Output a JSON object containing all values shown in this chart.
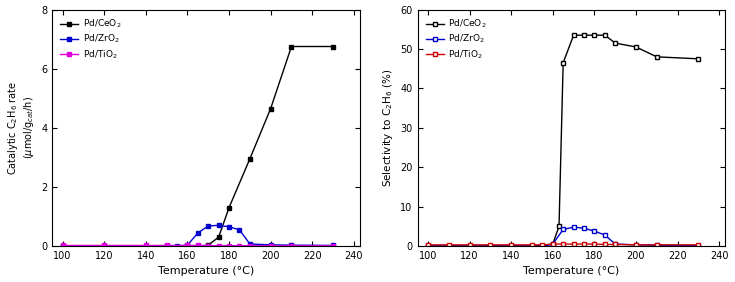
{
  "xlabel": "Temperature (°C)",
  "left_ylabel_line1": "Catalytic C",
  "right_ylabel": "Selectivity to C₂H₆ (%)",
  "temp_ceo2_left": [
    100,
    150,
    160,
    165,
    170,
    175,
    180,
    190,
    200,
    210,
    230
  ],
  "rate_ceo2": [
    0.0,
    0.0,
    0.0,
    0.0,
    0.03,
    0.3,
    1.3,
    2.95,
    4.65,
    6.75,
    6.75
  ],
  "temp_zro2_left": [
    100,
    150,
    155,
    160,
    165,
    170,
    175,
    180,
    185,
    190,
    200,
    210,
    230
  ],
  "rate_zro2": [
    0.0,
    0.0,
    0.0,
    0.03,
    0.44,
    0.68,
    0.7,
    0.65,
    0.55,
    0.07,
    0.04,
    0.03,
    0.02
  ],
  "temp_tio2_left": [
    100,
    120,
    140,
    150,
    160,
    165,
    170,
    175,
    180,
    185,
    190,
    200,
    210,
    230
  ],
  "rate_tio2": [
    0.02,
    0.02,
    0.02,
    0.02,
    0.02,
    0.02,
    0.01,
    0.01,
    0.01,
    0.01,
    0.01,
    0.01,
    0.01,
    0.01
  ],
  "temp_ceo2_right": [
    100,
    110,
    120,
    130,
    140,
    150,
    155,
    160,
    163,
    165,
    170,
    175,
    180,
    185,
    190,
    200,
    210,
    230
  ],
  "sel_ceo2": [
    0.0,
    0.0,
    0.0,
    0.0,
    0.0,
    0.0,
    0.0,
    0.5,
    5.0,
    46.5,
    53.5,
    53.5,
    53.5,
    53.5,
    51.5,
    50.5,
    48.0,
    47.5
  ],
  "temp_zro2_right": [
    100,
    120,
    140,
    150,
    155,
    160,
    165,
    170,
    175,
    180,
    185,
    190,
    200,
    210,
    230
  ],
  "sel_zro2": [
    0.0,
    0.0,
    0.0,
    0.0,
    0.0,
    0.5,
    4.2,
    4.8,
    4.5,
    3.8,
    2.8,
    0.5,
    0.3,
    0.2,
    0.1
  ],
  "temp_tio2_right": [
    100,
    110,
    120,
    130,
    140,
    150,
    155,
    160,
    165,
    170,
    175,
    180,
    185,
    190,
    200,
    210,
    230
  ],
  "sel_tio2": [
    0.3,
    0.3,
    0.3,
    0.3,
    0.3,
    0.3,
    0.3,
    0.5,
    0.5,
    0.5,
    0.5,
    0.5,
    0.4,
    0.4,
    0.3,
    0.3,
    0.3
  ],
  "left_ylim": [
    0,
    8
  ],
  "left_yticks": [
    0,
    2,
    4,
    6,
    8
  ],
  "right_ylim": [
    0,
    60
  ],
  "right_yticks": [
    0,
    10,
    20,
    30,
    40,
    50,
    60
  ],
  "xlim": [
    95,
    243
  ],
  "xticks": [
    100,
    120,
    140,
    160,
    180,
    200,
    220,
    240
  ],
  "color_ceo2_left": "#000000",
  "color_zro2_left": "#0000cc",
  "color_tio2_left": "#dd00dd",
  "color_ceo2_right": "#000000",
  "color_zro2_right": "#0000cc",
  "color_tio2_right": "#cc0000"
}
